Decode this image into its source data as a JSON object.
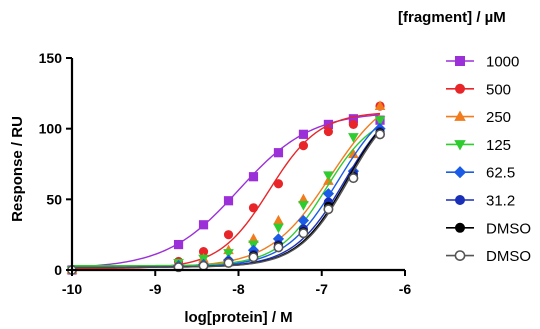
{
  "chart_data": {
    "type": "scatter",
    "title": "",
    "xlabel": "log[protein] / M",
    "ylabel": "Response / RU",
    "xlim": [
      -10,
      -6
    ],
    "ylim": [
      0,
      150
    ],
    "xticks": [
      -10,
      -9,
      -8,
      -7,
      -6
    ],
    "yticks": [
      0,
      50,
      100,
      150
    ],
    "xtick_labels": [
      "-10",
      "-9",
      "-8",
      "-7",
      "-6"
    ],
    "ytick_labels": [
      "0",
      "50",
      "100",
      "150"
    ],
    "legend_title": "[fragment] / µM",
    "legend_position": "right",
    "grid": false,
    "series": [
      {
        "name": "1000",
        "color": "#9b30d9",
        "marker": "square",
        "open": false,
        "x": [
          -10,
          -8.72,
          -8.42,
          -8.12,
          -7.82,
          -7.52,
          -7.22,
          -6.92,
          -6.62,
          -6.3
        ],
        "y": [
          0,
          18,
          32,
          49,
          66,
          83,
          96,
          103,
          107,
          106
        ],
        "fit": {
          "bottom": 1,
          "top": 112,
          "logec50": -8.0,
          "hill": 1.0
        }
      },
      {
        "name": "500",
        "color": "#e8262a",
        "marker": "circle",
        "open": false,
        "x": [
          -10,
          -8.72,
          -8.42,
          -8.12,
          -7.82,
          -7.52,
          -7.22,
          -6.92,
          -6.62,
          -6.3
        ],
        "y": [
          0,
          6,
          13,
          25,
          44,
          61,
          88,
          98,
          103,
          116
        ],
        "fit": {
          "bottom": 1,
          "top": 112,
          "logec50": -7.63,
          "hill": 1.45
        }
      },
      {
        "name": "250",
        "color": "#f07c1e",
        "marker": "triangle-up",
        "open": false,
        "x": [
          -10,
          -8.72,
          -8.42,
          -8.12,
          -7.82,
          -7.52,
          -7.22,
          -6.92,
          -6.62,
          -6.3
        ],
        "y": [
          0,
          4,
          8,
          14,
          22,
          35,
          50,
          63,
          82,
          116
        ],
        "fit": {
          "bottom": 2,
          "top": 130,
          "logec50": -6.9,
          "hill": 1.2
        }
      },
      {
        "name": "125",
        "color": "#2fcc2f",
        "marker": "triangle-down",
        "open": false,
        "x": [
          -10,
          -8.72,
          -8.42,
          -8.12,
          -7.82,
          -7.52,
          -7.22,
          -6.92,
          -6.62,
          -6.3
        ],
        "y": [
          0,
          5,
          8,
          12,
          18,
          30,
          46,
          67,
          94,
          106
        ],
        "fit": {
          "bottom": 3,
          "top": 112,
          "logec50": -6.95,
          "hill": 1.5
        }
      },
      {
        "name": "62.5",
        "color": "#1a5ce6",
        "marker": "diamond",
        "open": false,
        "x": [
          -10,
          -8.72,
          -8.42,
          -8.12,
          -7.82,
          -7.52,
          -7.22,
          -6.92,
          -6.62,
          -6.3
        ],
        "y": [
          0,
          3,
          4,
          7,
          14,
          22,
          35,
          54,
          70,
          100
        ],
        "fit": {
          "bottom": 2,
          "top": 125,
          "logec50": -6.8,
          "hill": 1.35
        }
      },
      {
        "name": "31.2",
        "color": "#1a2fb8",
        "marker": "circle",
        "open": false,
        "x": [
          -10,
          -8.72,
          -8.42,
          -8.12,
          -7.82,
          -7.52,
          -7.22,
          -6.92,
          -6.62,
          -6.3
        ],
        "y": [
          0,
          2,
          3,
          6,
          11,
          18,
          29,
          48,
          68,
          98
        ],
        "fit": {
          "bottom": 2,
          "top": 125,
          "logec50": -6.72,
          "hill": 1.4
        }
      },
      {
        "name": "DMSO",
        "color": "#000000",
        "marker": "circle",
        "open": false,
        "x": [
          -10,
          -8.72,
          -8.42,
          -8.12,
          -7.82,
          -7.52,
          -7.22,
          -6.92,
          -6.62,
          -6.3
        ],
        "y": [
          0,
          2,
          3,
          5,
          10,
          17,
          27,
          45,
          66,
          97
        ],
        "fit": {
          "bottom": 2,
          "top": 125,
          "logec50": -6.7,
          "hill": 1.45
        }
      },
      {
        "name": "DMSO",
        "color": "#555555",
        "marker": "circle",
        "open": true,
        "x": [
          -10,
          -8.72,
          -8.42,
          -8.12,
          -7.82,
          -7.52,
          -7.22,
          -6.92,
          -6.62,
          -6.3
        ],
        "y": [
          0,
          2,
          3,
          5,
          9,
          16,
          26,
          43,
          65,
          96
        ],
        "fit": {
          "bottom": 2,
          "top": 125,
          "logec50": -6.68,
          "hill": 1.45
        }
      }
    ]
  }
}
